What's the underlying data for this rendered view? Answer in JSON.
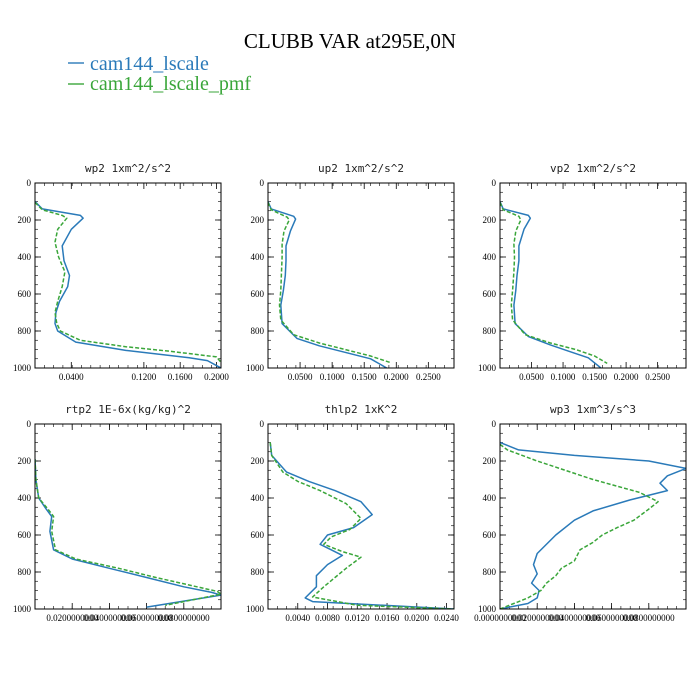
{
  "figure": {
    "title": "CLUBB VAR at295E,0N"
  },
  "colors": {
    "cam144_lscale": "#2a7ab9",
    "cam144_lscale_pmf": "#3aa63a"
  },
  "legend": [
    {
      "name": "cam144_lscale",
      "color": "#2a7ab9",
      "dash": "solid"
    },
    {
      "name": "cam144_lscale_pmf",
      "color": "#3aa63a",
      "dash": "dashed"
    }
  ],
  "chart_data": [
    {
      "type": "line",
      "title": "wp2  1xm^2/s^2",
      "ylim": [
        0,
        1000
      ],
      "yticks": [
        0,
        200,
        400,
        600,
        800,
        1000
      ],
      "xlim": [
        0,
        0.205
      ],
      "xticks": [
        0.04,
        0.12,
        0.16,
        0.2
      ],
      "xtick_labels": [
        "0.0400",
        "0.1200",
        "0.1600",
        "0.2000"
      ],
      "series": [
        {
          "name": "cam144_lscale",
          "x": [
            0.0,
            0.008,
            0.05,
            0.053,
            0.04,
            0.03,
            0.032,
            0.038,
            0.036,
            0.027,
            0.023,
            0.022,
            0.025,
            0.045,
            0.1,
            0.17,
            0.19,
            0.205
          ],
          "y": [
            100,
            140,
            175,
            190,
            250,
            340,
            420,
            500,
            560,
            640,
            700,
            760,
            800,
            860,
            905,
            945,
            960,
            1000
          ]
        },
        {
          "name": "cam144_lscale_pmf",
          "x": [
            0.0,
            0.008,
            0.03,
            0.035,
            0.025,
            0.022,
            0.026,
            0.033,
            0.03,
            0.025,
            0.022,
            0.024,
            0.028,
            0.05,
            0.1,
            0.15,
            0.2,
            0.205
          ],
          "y": [
            105,
            145,
            175,
            190,
            250,
            320,
            400,
            480,
            560,
            640,
            700,
            760,
            800,
            850,
            885,
            910,
            940,
            970
          ]
        }
      ]
    },
    {
      "type": "line",
      "title": "up2  1xm^2/s^2",
      "ylim": [
        0,
        1000
      ],
      "yticks": [
        0,
        200,
        400,
        600,
        800,
        1000
      ],
      "xlim": [
        0,
        0.29
      ],
      "xticks": [
        0.05,
        0.1,
        0.15,
        0.2,
        0.25
      ],
      "xtick_labels": [
        "0.0500",
        "0.1000",
        "0.1500",
        "0.2000",
        "0.2500"
      ],
      "series": [
        {
          "name": "cam144_lscale",
          "x": [
            0.0,
            0.005,
            0.04,
            0.043,
            0.035,
            0.028,
            0.028,
            0.027,
            0.024,
            0.02,
            0.022,
            0.045,
            0.08,
            0.12,
            0.16,
            0.185
          ],
          "y": [
            100,
            140,
            180,
            195,
            260,
            340,
            420,
            500,
            580,
            660,
            760,
            840,
            880,
            915,
            950,
            1000
          ]
        },
        {
          "name": "cam144_lscale_pmf",
          "x": [
            0.0,
            0.005,
            0.03,
            0.033,
            0.025,
            0.022,
            0.022,
            0.021,
            0.02,
            0.018,
            0.02,
            0.04,
            0.08,
            0.12,
            0.16,
            0.19
          ],
          "y": [
            105,
            145,
            185,
            200,
            260,
            330,
            400,
            480,
            580,
            660,
            740,
            820,
            865,
            900,
            935,
            970
          ]
        }
      ]
    },
    {
      "type": "line",
      "title": "vp2  1xm^2/s^2",
      "ylim": [
        0,
        1000
      ],
      "yticks": [
        0,
        200,
        400,
        600,
        800,
        1000
      ],
      "xlim": [
        0,
        0.295
      ],
      "xticks": [
        0.05,
        0.1,
        0.15,
        0.2,
        0.25
      ],
      "xtick_labels": [
        "0.0500",
        "0.1000",
        "0.1500",
        "0.2000",
        "0.2500"
      ],
      "series": [
        {
          "name": "cam144_lscale",
          "x": [
            0.0,
            0.005,
            0.045,
            0.048,
            0.038,
            0.03,
            0.03,
            0.027,
            0.025,
            0.022,
            0.024,
            0.045,
            0.08,
            0.11,
            0.14,
            0.16
          ],
          "y": [
            100,
            140,
            175,
            190,
            250,
            340,
            420,
            500,
            580,
            660,
            760,
            830,
            875,
            910,
            945,
            1000
          ]
        },
        {
          "name": "cam144_lscale_pmf",
          "x": [
            0.0,
            0.005,
            0.03,
            0.033,
            0.025,
            0.022,
            0.023,
            0.022,
            0.02,
            0.018,
            0.02,
            0.04,
            0.08,
            0.12,
            0.15,
            0.17
          ],
          "y": [
            105,
            145,
            180,
            200,
            260,
            330,
            400,
            480,
            580,
            660,
            740,
            820,
            865,
            900,
            935,
            975
          ]
        }
      ]
    },
    {
      "type": "line",
      "title": "rtp2  1E-6x(kg/kg)^2",
      "ylim": [
        0,
        1000
      ],
      "yticks": [
        0,
        200,
        400,
        600,
        800,
        1000
      ],
      "xlim": [
        0,
        0.1
      ],
      "xticks": [
        0.02,
        0.04,
        0.06,
        0.08
      ],
      "xtick_labels": [
        "0.0200000000",
        "0.0400000000",
        "0.0600000000",
        "0.0800000000"
      ],
      "series": [
        {
          "name": "cam144_lscale",
          "x": [
            0.0,
            0.0005,
            0.002,
            0.006,
            0.009,
            0.008,
            0.01,
            0.02,
            0.04,
            0.06,
            0.08,
            0.095,
            0.1,
            0.06
          ],
          "y": [
            190,
            300,
            400,
            460,
            500,
            580,
            680,
            730,
            780,
            830,
            880,
            910,
            925,
            990
          ]
        },
        {
          "name": "cam144_lscale_pmf",
          "x": [
            0.0,
            0.0005,
            0.002,
            0.007,
            0.01,
            0.009,
            0.011,
            0.022,
            0.045,
            0.065,
            0.085,
            0.098,
            0.1,
            0.07
          ],
          "y": [
            190,
            300,
            400,
            460,
            500,
            580,
            680,
            730,
            780,
            830,
            875,
            905,
            920,
            980
          ]
        }
      ]
    },
    {
      "type": "line",
      "title": "thlp2  1xK^2",
      "ylim": [
        0,
        1000
      ],
      "yticks": [
        0,
        200,
        400,
        600,
        800,
        1000
      ],
      "xlim": [
        0,
        0.025
      ],
      "xticks": [
        0.004,
        0.008,
        0.012,
        0.016,
        0.02,
        0.024
      ],
      "xtick_labels": [
        "0.0040",
        "0.0080",
        "0.0120",
        "0.0160",
        "0.0200",
        "0.0240"
      ],
      "series": [
        {
          "name": "cam144_lscale",
          "x": [
            0.0003,
            0.0005,
            0.0025,
            0.0055,
            0.009,
            0.0125,
            0.014,
            0.0115,
            0.008,
            0.007,
            0.0085,
            0.01,
            0.008,
            0.0065,
            0.0065,
            0.005,
            0.006,
            0.025
          ],
          "y": [
            100,
            170,
            260,
            310,
            360,
            420,
            490,
            560,
            600,
            650,
            680,
            710,
            760,
            820,
            880,
            940,
            960,
            1000
          ]
        },
        {
          "name": "cam144_lscale_pmf",
          "x": [
            0.0003,
            0.0005,
            0.002,
            0.004,
            0.007,
            0.0105,
            0.0125,
            0.011,
            0.0085,
            0.0075,
            0.01,
            0.0125,
            0.0105,
            0.009,
            0.0075,
            0.006,
            0.012,
            0.025
          ],
          "y": [
            100,
            170,
            260,
            310,
            360,
            430,
            510,
            570,
            610,
            650,
            690,
            720,
            780,
            830,
            880,
            935,
            980,
            1000
          ]
        }
      ]
    },
    {
      "type": "line",
      "title": "wp3  1xm^3/s^3",
      "ylim": [
        0,
        1000
      ],
      "yticks": [
        0,
        200,
        400,
        600,
        800,
        1000
      ],
      "xlim": [
        0,
        0.1
      ],
      "xticks": [
        0.0,
        0.02,
        0.04,
        0.06,
        0.08
      ],
      "xtick_labels": [
        "0.0000000000",
        "0.0200000000",
        "0.0400000000",
        "0.0600000000",
        "0.0800000000"
      ],
      "series": [
        {
          "name": "cam144_lscale",
          "x": [
            0.0,
            0.01,
            0.04,
            0.08,
            0.1,
            0.09,
            0.086,
            0.09,
            0.07,
            0.05,
            0.04,
            0.03,
            0.02,
            0.018,
            0.02,
            0.017,
            0.021,
            0.02,
            0.015,
            0.0
          ],
          "y": [
            100,
            140,
            170,
            200,
            240,
            280,
            320,
            360,
            410,
            470,
            520,
            600,
            700,
            760,
            810,
            860,
            900,
            940,
            970,
            1000
          ]
        },
        {
          "name": "cam144_lscale_pmf",
          "x": [
            0.0,
            0.004,
            0.02,
            0.05,
            0.075,
            0.085,
            0.08,
            0.072,
            0.063,
            0.055,
            0.05,
            0.043,
            0.04,
            0.033,
            0.03,
            0.025,
            0.022,
            0.015,
            0.0
          ],
          "y": [
            110,
            140,
            200,
            300,
            370,
            420,
            460,
            520,
            560,
            600,
            640,
            680,
            740,
            780,
            820,
            860,
            900,
            940,
            1000
          ]
        }
      ]
    }
  ]
}
